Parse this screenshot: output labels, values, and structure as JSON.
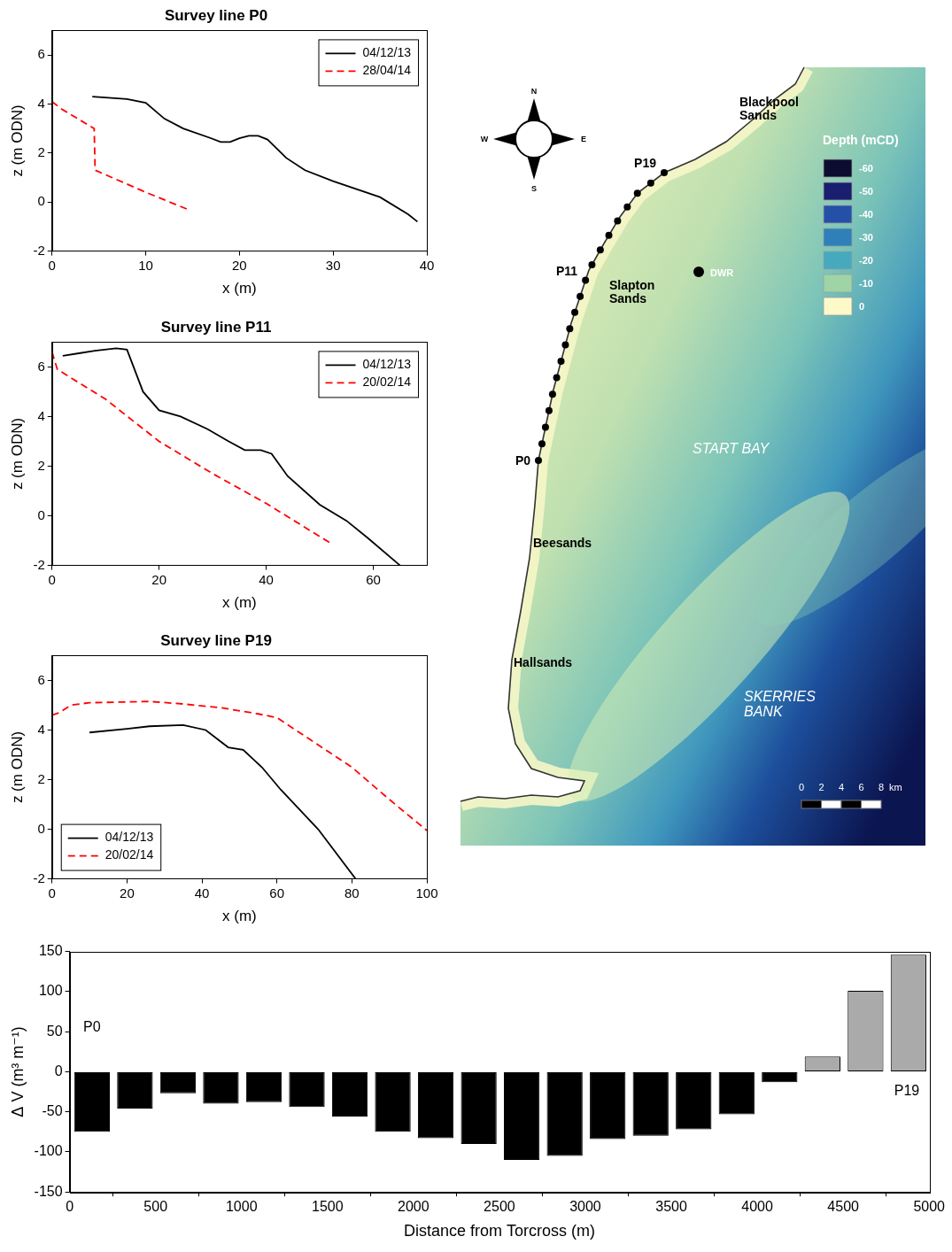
{
  "chart_data": [
    {
      "type": "line",
      "title": "Survey line P0",
      "x_label": "x (m)",
      "y_label": "z (m ODN)",
      "xlim": [
        0,
        40
      ],
      "xticks": [
        0,
        10,
        20,
        30,
        40
      ],
      "ylim": [
        -2,
        7
      ],
      "yticks": [
        -2,
        0,
        2,
        4,
        6
      ],
      "grid": false,
      "legend": "upper right",
      "series": [
        {
          "name": "04/12/13",
          "color": "#000000",
          "line_style": "solid",
          "x": [
            4.3,
            8,
            10,
            12,
            14,
            17,
            18,
            19,
            20,
            21,
            22,
            23,
            25,
            27,
            30,
            35,
            38,
            39
          ],
          "values": [
            4.3,
            4.2,
            4.05,
            3.4,
            3.0,
            2.6,
            2.45,
            2.45,
            2.6,
            2.7,
            2.7,
            2.55,
            1.8,
            1.3,
            0.85,
            0.2,
            -0.5,
            -0.8
          ]
        },
        {
          "name": "28/04/14",
          "color": "#ff0000",
          "line_style": "dashed",
          "x": [
            0,
            1,
            4.5,
            4.6,
            10,
            14.5
          ],
          "values": [
            4.1,
            3.8,
            3.0,
            1.3,
            0.4,
            -0.3
          ]
        }
      ]
    },
    {
      "type": "line",
      "title": "Survey line P11",
      "x_label": "x (m)",
      "y_label": "z (m ODN)",
      "xlim": [
        0,
        70
      ],
      "xticks": [
        0,
        20,
        40,
        60
      ],
      "ylim": [
        -2,
        7
      ],
      "yticks": [
        -2,
        0,
        2,
        4,
        6
      ],
      "grid": false,
      "legend": "upper right",
      "series": [
        {
          "name": "04/12/13",
          "color": "#000000",
          "line_style": "solid",
          "x": [
            2,
            5,
            8,
            12,
            14,
            17,
            20,
            24,
            29,
            33,
            36,
            39,
            41,
            44,
            50,
            55,
            59,
            65
          ],
          "values": [
            6.45,
            6.55,
            6.65,
            6.75,
            6.7,
            5.0,
            4.25,
            4.0,
            3.5,
            3.0,
            2.65,
            2.65,
            2.5,
            1.6,
            0.45,
            -0.2,
            -0.9,
            -2.0
          ]
        },
        {
          "name": "20/02/14",
          "color": "#ff0000",
          "line_style": "dashed",
          "x": [
            0,
            1,
            4,
            10,
            20,
            30,
            40,
            52
          ],
          "values": [
            6.6,
            5.9,
            5.5,
            4.7,
            3.0,
            1.7,
            0.5,
            -1.1
          ]
        }
      ]
    },
    {
      "type": "line",
      "title": "Survey line P19",
      "x_label": "x (m)",
      "y_label": "z (m ODN)",
      "xlim": [
        0,
        100
      ],
      "xticks": [
        0,
        20,
        40,
        60,
        80,
        100
      ],
      "ylim": [
        -2,
        7
      ],
      "yticks": [
        -2,
        0,
        2,
        4,
        6
      ],
      "grid": false,
      "legend": "lower left",
      "series": [
        {
          "name": "04/12/13",
          "color": "#000000",
          "line_style": "solid",
          "x": [
            10,
            20,
            26,
            35,
            41,
            47,
            51,
            56,
            61,
            71,
            81
          ],
          "values": [
            3.9,
            4.05,
            4.15,
            4.2,
            4.0,
            3.3,
            3.2,
            2.5,
            1.6,
            0.0,
            -2.0
          ]
        },
        {
          "name": "20/02/14",
          "color": "#ff0000",
          "line_style": "dashed",
          "x": [
            0,
            2,
            5,
            10,
            26,
            35,
            45,
            55,
            60,
            70,
            80,
            90,
            100
          ],
          "values": [
            4.6,
            4.7,
            5.0,
            5.1,
            5.15,
            5.05,
            4.9,
            4.65,
            4.5,
            3.5,
            2.5,
            1.2,
            -0.05
          ]
        }
      ]
    },
    {
      "type": "bar",
      "x_label": "Distance from Torcross (m)",
      "y_label": "Δ V (m³ m⁻¹)",
      "xlim": [
        0,
        5000
      ],
      "xticks": [
        0,
        500,
        1000,
        1500,
        2000,
        2500,
        3000,
        3500,
        4000,
        4500,
        5000
      ],
      "ylim": [
        -150,
        150
      ],
      "yticks": [
        -150,
        -100,
        -50,
        0,
        50,
        100,
        150
      ],
      "grid": false,
      "x": [
        130,
        380,
        630,
        880,
        1130,
        1380,
        1630,
        1880,
        2130,
        2380,
        2630,
        2880,
        3130,
        3380,
        3630,
        3880,
        4130,
        4380,
        4630,
        4880
      ],
      "values": [
        -75,
        -46,
        -27,
        -40,
        -38,
        -44,
        -56,
        -75,
        -83,
        -90,
        -110,
        -105,
        -84,
        -80,
        -72,
        -53,
        -13,
        19,
        101,
        146
      ],
      "colors": [
        "#000000",
        "#000000",
        "#000000",
        "#000000",
        "#000000",
        "#000000",
        "#000000",
        "#000000",
        "#000000",
        "#000000",
        "#000000",
        "#000000",
        "#000000",
        "#000000",
        "#000000",
        "#000000",
        "#000000",
        "#aaaaaa",
        "#aaaaaa",
        "#aaaaaa"
      ],
      "annotations": [
        {
          "text": "P0",
          "x": 130,
          "y": 55
        },
        {
          "text": "P19",
          "x": 4870,
          "y": -25
        }
      ]
    }
  ],
  "map": {
    "compass": {
      "north": "N",
      "east": "E",
      "south": "S",
      "west": "W"
    },
    "place_labels": [
      "Blackpool Sands",
      "Slapton Sands",
      "Beesands",
      "Hallsands"
    ],
    "sea_labels": [
      "START BAY",
      "SKERRIES BANK"
    ],
    "station": "DWR",
    "profile_labels": [
      "P0",
      null,
      null,
      null,
      null,
      null,
      null,
      null,
      null,
      null,
      null,
      "P11",
      null,
      null,
      null,
      null,
      null,
      null,
      null,
      "P19"
    ],
    "colorbar": {
      "title": "Depth (mCD)",
      "ticks": [
        -60,
        -50,
        -40,
        -30,
        -20,
        -10,
        0
      ],
      "colors": [
        "#0b0c30",
        "#1a1e6e",
        "#2450a8",
        "#2f80b8",
        "#46a9bd",
        "#9fd4a6",
        "#fdf9c8"
      ]
    },
    "scale_bar": {
      "ticks": [
        0,
        2,
        4,
        6,
        8
      ],
      "unit": "km"
    }
  }
}
